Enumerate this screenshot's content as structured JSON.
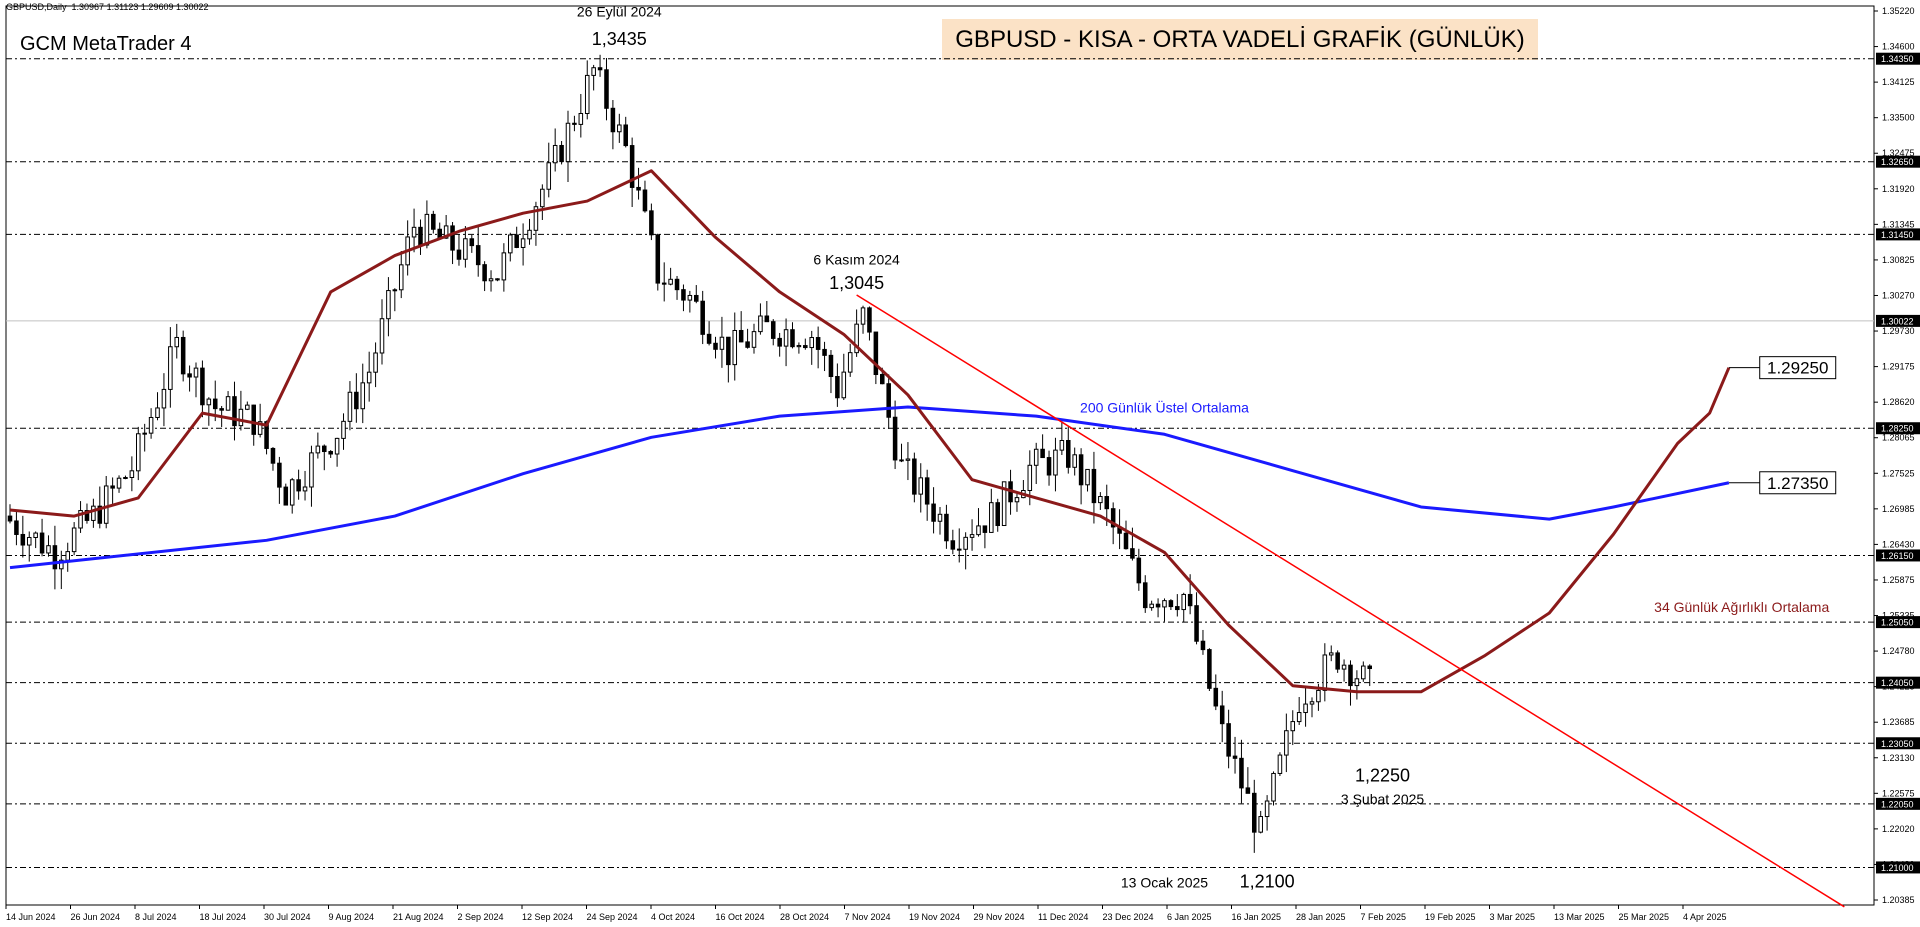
{
  "window": {
    "symbol": "GBPUSD,Daily",
    "ohlc": "1.30967 1.31123 1.29609 1.30022",
    "brand": "GCM MetaTrader 4",
    "title": "GBPUSD - KISA - ORTA VADELİ GRAFİK (GÜNLÜK)"
  },
  "chart_data": {
    "type": "candlestick",
    "ylim": [
      1.2038,
      1.3522
    ],
    "y_tick_labels": [
      "1.35220",
      "1.34600",
      "1.34125",
      "1.33500",
      "1.32475",
      "1.31920",
      "1.31345",
      "1.30825",
      "1.30270",
      "1.29730",
      "1.29175",
      "1.28620",
      "1.28065",
      "1.27525",
      "1.26985",
      "1.26430",
      "1.25875",
      "1.25335",
      "1.24780",
      "1.24225",
      "1.23685",
      "1.23130",
      "1.22575",
      "1.22020",
      "1.21480",
      "1.20385"
    ],
    "x_tick_labels": [
      "14 Jun 2024",
      "26 Jun 2024",
      "8 Jul 2024",
      "18 Jul 2024",
      "30 Jul 2024",
      "9 Aug 2024",
      "21 Aug 2024",
      "2 Sep 2024",
      "12 Sep 2024",
      "24 Sep 2024",
      "4 Oct 2024",
      "16 Oct 2024",
      "28 Oct 2024",
      "7 Nov 2024",
      "19 Nov 2024",
      "29 Nov 2024",
      "11 Dec 2024",
      "23 Dec 2024",
      "6 Jan 2025",
      "16 Jan 2025",
      "28 Jan 2025",
      "7 Feb 2025",
      "19 Feb 2025",
      "3 Mar 2025",
      "13 Mar 2025",
      "25 Mar 2025",
      "4 Apr 2025"
    ],
    "levels": [
      {
        "label": "1.34350",
        "value": 1.3435
      },
      {
        "label": "1.32650",
        "value": 1.3265
      },
      {
        "label": "1.31450",
        "value": 1.3145
      },
      {
        "label": "1.28250",
        "value": 1.2825
      },
      {
        "label": "1.26150",
        "value": 1.2615
      },
      {
        "label": "1.25050",
        "value": 1.2505
      },
      {
        "label": "1.24050",
        "value": 1.2405
      },
      {
        "label": "1.23050",
        "value": 1.2305
      },
      {
        "label": "1.22050",
        "value": 1.2205
      },
      {
        "label": "1.21000",
        "value": 1.21
      }
    ],
    "current_price": {
      "label": "1.30022",
      "value": 1.30022
    },
    "bar_count": 213,
    "anchors": [
      [
        0,
        1.268
      ],
      [
        8,
        1.262
      ],
      [
        14,
        1.268
      ],
      [
        20,
        1.276
      ],
      [
        27,
        1.296
      ],
      [
        33,
        1.286
      ],
      [
        39,
        1.284
      ],
      [
        44,
        1.272
      ],
      [
        52,
        1.282
      ],
      [
        57,
        1.292
      ],
      [
        64,
        1.316
      ],
      [
        71,
        1.312
      ],
      [
        77,
        1.308
      ],
      [
        85,
        1.324
      ],
      [
        92,
        1.3415
      ],
      [
        97,
        1.3285
      ],
      [
        102,
        1.308
      ],
      [
        107,
        1.304
      ],
      [
        113,
        1.295
      ],
      [
        119,
        1.299
      ],
      [
        126,
        1.298
      ],
      [
        130,
        1.289
      ],
      [
        134,
        1.301
      ],
      [
        140,
        1.276
      ],
      [
        148,
        1.265
      ],
      [
        154,
        1.268
      ],
      [
        160,
        1.276
      ],
      [
        166,
        1.278
      ],
      [
        172,
        1.268
      ],
      [
        178,
        1.255
      ],
      [
        184,
        1.255
      ],
      [
        190,
        1.232
      ],
      [
        196,
        1.2155
      ],
      [
        202,
        1.238
      ],
      [
        208,
        1.245
      ],
      [
        214,
        1.239
      ],
      [
        216,
        1.238
      ],
      [
        220,
        1.234
      ],
      [
        222,
        1.246
      ],
      [
        225,
        1.247
      ],
      [
        230,
        1.258
      ],
      [
        236,
        1.262
      ],
      [
        241,
        1.261
      ],
      [
        245,
        1.272
      ],
      [
        250,
        1.292
      ],
      [
        256,
        1.296
      ],
      [
        261,
        1.294
      ],
      [
        267,
        1.293
      ],
      [
        272,
        1.292
      ],
      [
        276,
        1.299
      ],
      [
        280,
        1.298
      ],
      [
        283,
        1.3
      ]
    ],
    "ma34": {
      "name": "34 Günlük Ağırlıklı Ortalama",
      "color": "#8b1a1a",
      "points": [
        [
          0,
          1.269
        ],
        [
          10,
          1.268
        ],
        [
          20,
          1.271
        ],
        [
          30,
          1.285
        ],
        [
          40,
          1.283
        ],
        [
          50,
          1.305
        ],
        [
          60,
          1.311
        ],
        [
          70,
          1.315
        ],
        [
          80,
          1.318
        ],
        [
          90,
          1.32
        ],
        [
          100,
          1.325
        ],
        [
          110,
          1.314
        ],
        [
          120,
          1.305
        ],
        [
          130,
          1.298
        ],
        [
          140,
          1.288
        ],
        [
          150,
          1.274
        ],
        [
          160,
          1.271
        ],
        [
          170,
          1.268
        ],
        [
          180,
          1.262
        ],
        [
          190,
          1.25
        ],
        [
          200,
          1.24
        ],
        [
          210,
          1.239
        ],
        [
          220,
          1.239
        ],
        [
          230,
          1.245
        ],
        [
          240,
          1.252
        ],
        [
          250,
          1.265
        ],
        [
          260,
          1.28
        ],
        [
          265,
          1.285
        ],
        [
          268,
          1.2925
        ]
      ]
    },
    "ema200": {
      "name": "200 Günlük Üstel Ortalama",
      "color": "#1a1aff",
      "points": [
        [
          0,
          1.2595
        ],
        [
          40,
          1.264
        ],
        [
          60,
          1.268
        ],
        [
          80,
          1.275
        ],
        [
          100,
          1.281
        ],
        [
          120,
          1.2845
        ],
        [
          140,
          1.286
        ],
        [
          160,
          1.2845
        ],
        [
          180,
          1.2815
        ],
        [
          200,
          1.2755
        ],
        [
          220,
          1.2695
        ],
        [
          240,
          1.2675
        ],
        [
          250,
          1.2695
        ],
        [
          268,
          1.2735
        ]
      ]
    },
    "trendline": {
      "from": [
        132,
        1.3045
      ],
      "to": [
        286,
        1.2035
      ],
      "color": "#ff0000"
    },
    "annotations": [
      {
        "text": "26 Eylül 2024",
        "x": 95,
        "y": 1.3505,
        "size": 14,
        "color": "#000000"
      },
      {
        "text": "1,3435",
        "x": 95,
        "y": 1.3458,
        "size": 18,
        "color": "#000000"
      },
      {
        "text": "6 Kasım 2024",
        "x": 132,
        "y": 1.3095,
        "size": 14,
        "color": "#000000"
      },
      {
        "text": "1,3045",
        "x": 132,
        "y": 1.3055,
        "size": 18,
        "color": "#000000"
      },
      {
        "text": "1,2250",
        "x": 214,
        "y": 1.2242,
        "size": 18,
        "color": "#000000"
      },
      {
        "text": "3 Şubat 2025",
        "x": 214,
        "y": 1.2205,
        "size": 14,
        "color": "#000000"
      },
      {
        "text": "13 Ocak 2025",
        "x": 180,
        "y": 1.2067,
        "size": 14,
        "color": "#000000"
      },
      {
        "text": "1,2100",
        "x": 196,
        "y": 1.2067,
        "size": 18,
        "color": "#000000"
      },
      {
        "text": "200 Günlük Üstel Ortalama",
        "x": 180,
        "y": 1.2851,
        "size": 14,
        "color": "#1a1aff"
      },
      {
        "text": "34 Günlük Ağırlıklı Ortalama",
        "x": 270,
        "y": 1.2522,
        "size": 14,
        "color": "#8b1a1a"
      }
    ],
    "value_boxes": [
      {
        "text": "1.29250",
        "value": 1.2925
      },
      {
        "text": "1.27350",
        "value": 1.2735
      }
    ]
  }
}
